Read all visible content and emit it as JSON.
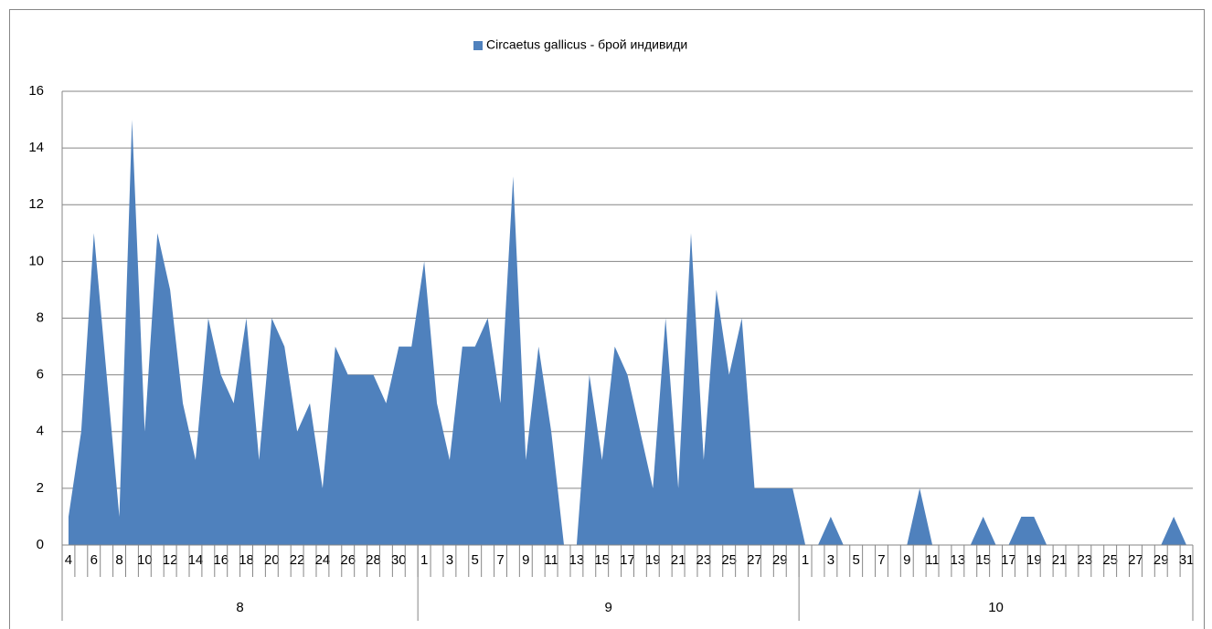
{
  "chart_data": {
    "type": "area",
    "legend_position": "top",
    "groups": [
      {
        "label": "8",
        "categories": [
          "4",
          null,
          "6",
          null,
          "8",
          null,
          "10",
          null,
          "12",
          null,
          "14",
          null,
          "16",
          null,
          "18",
          null,
          "20",
          null,
          "22",
          null,
          "24",
          null,
          "26",
          null,
          "28",
          null,
          "30",
          null
        ]
      },
      {
        "label": "9",
        "categories": [
          "1",
          null,
          "3",
          null,
          "5",
          null,
          "7",
          null,
          "9",
          null,
          "11",
          null,
          "13",
          null,
          "15",
          null,
          "17",
          null,
          "19",
          null,
          "21",
          null,
          "23",
          null,
          "25",
          null,
          "27",
          null,
          "29",
          null
        ]
      },
      {
        "label": "10",
        "categories": [
          "1",
          null,
          "3",
          null,
          "5",
          null,
          "7",
          null,
          "9",
          null,
          "11",
          null,
          "13",
          null,
          "15",
          null,
          "17",
          null,
          "19",
          null,
          "21",
          null,
          "23",
          null,
          "25",
          null,
          "27",
          null,
          "29",
          null,
          "31"
        ]
      }
    ],
    "series": [
      {
        "name": "Circaetus gallicus - брой индивиди",
        "color": "#4f81bd",
        "values": [
          1,
          4,
          11,
          6,
          1,
          15,
          4,
          11,
          9,
          5,
          3,
          8,
          6,
          5,
          8,
          3,
          8,
          7,
          4,
          5,
          2,
          7,
          6,
          6,
          6,
          5,
          7,
          7,
          10,
          5,
          3,
          7,
          7,
          8,
          5,
          13,
          3,
          7,
          4,
          0,
          0,
          6,
          3,
          7,
          6,
          4,
          2,
          8,
          2,
          11,
          3,
          9,
          6,
          8,
          2,
          2,
          2,
          2,
          0,
          0,
          1,
          0,
          0,
          0,
          0,
          0,
          0,
          2,
          0,
          0,
          0,
          0,
          1,
          0,
          0,
          1,
          1,
          0,
          0,
          0,
          0,
          0,
          0,
          0,
          0,
          0,
          0,
          1,
          0,
          0,
          0
        ]
      }
    ],
    "ylim": [
      0,
      16
    ],
    "yticks": [
      0,
      2,
      4,
      6,
      8,
      10,
      12,
      14,
      16
    ],
    "grid": true
  }
}
